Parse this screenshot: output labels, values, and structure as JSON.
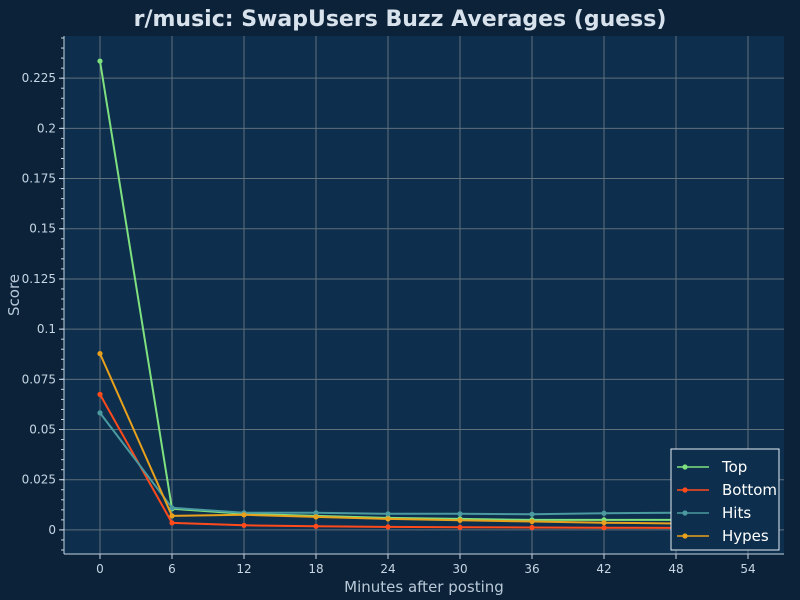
{
  "chart_data": {
    "type": "line",
    "title": "r/music: SwapUsers Buzz Averages (guess)",
    "xlabel": "Minutes after posting",
    "ylabel": "Score",
    "x": [
      0,
      6,
      12,
      18,
      24,
      30,
      36,
      42,
      48
    ],
    "xticks": [
      0,
      6,
      12,
      18,
      24,
      30,
      36,
      42,
      48,
      54
    ],
    "xlim": [
      -3,
      57
    ],
    "yticks": [
      0,
      0.025,
      0.05,
      0.075,
      0.1,
      0.125,
      0.15,
      0.175,
      0.2,
      0.225
    ],
    "ylim": [
      -0.012,
      0.246
    ],
    "grid": true,
    "legend_position": "bottom-right",
    "series": [
      {
        "name": "Top",
        "color": "#7ee07e",
        "values": [
          0.2335,
          0.0105,
          0.008,
          0.007,
          0.006,
          0.0055,
          0.005,
          0.005,
          0.005
        ]
      },
      {
        "name": "Bottom",
        "color": "#ff4a1c",
        "values": [
          0.0675,
          0.0035,
          0.0023,
          0.0018,
          0.0015,
          0.0013,
          0.0012,
          0.0011,
          0.001
        ]
      },
      {
        "name": "Hits",
        "color": "#4a9aa0",
        "values": [
          0.0583,
          0.011,
          0.0085,
          0.0085,
          0.008,
          0.008,
          0.0078,
          0.0083,
          0.0085
        ]
      },
      {
        "name": "Hypes",
        "color": "#e8a11c",
        "values": [
          0.0878,
          0.007,
          0.0075,
          0.0065,
          0.0055,
          0.0048,
          0.0042,
          0.0036,
          0.0032
        ]
      }
    ]
  }
}
